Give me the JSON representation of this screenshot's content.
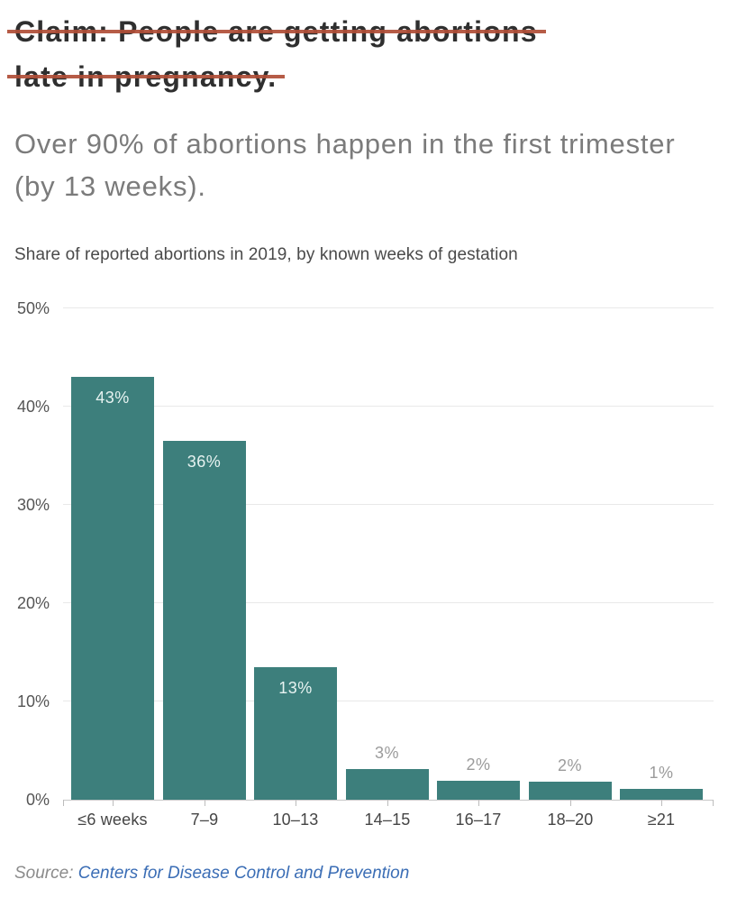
{
  "claim": {
    "line1": "Claim: People are getting abortions",
    "line2": "late in pregnancy."
  },
  "headline": "Over 90% of abortions happen in the first trimester (by 13 weeks).",
  "chart_description": "Share of reported abortions in 2019, by known weeks of gestation",
  "source": {
    "prefix": "Source: ",
    "link_text": "Centers for Disease Control and Prevention"
  },
  "colors": {
    "bar": "#3d7f7c",
    "strikethrough": "#b04e37",
    "claim_text": "#2f2f2f",
    "headline_text": "#7b7b7b",
    "inside_label": "#e7f3f1",
    "above_label": "#9b9b9b",
    "source_link": "#3a6db5",
    "gridline": "#e9e9e9"
  },
  "chart_data": {
    "type": "bar",
    "title": "Share of reported abortions in 2019, by known weeks of gestation",
    "categories": [
      "≤6 weeks",
      "7–9",
      "10–13",
      "14–15",
      "16–17",
      "18–20",
      "≥21"
    ],
    "values": [
      43,
      36,
      13,
      3,
      2,
      2,
      1
    ],
    "value_labels": [
      "43%",
      "36%",
      "13%",
      "3%",
      "2%",
      "2%",
      "1%"
    ],
    "bar_heights_pct": [
      43,
      36.5,
      13.5,
      3.1,
      1.9,
      1.8,
      1.1
    ],
    "label_placement": [
      "inside",
      "inside",
      "inside",
      "above",
      "above",
      "above",
      "above"
    ],
    "xlabel": "",
    "ylabel": "",
    "ylim": [
      0,
      50
    ],
    "yticks": [
      0,
      10,
      20,
      30,
      40,
      50
    ],
    "ytick_labels": [
      "0%",
      "10%",
      "20%",
      "30%",
      "40%",
      "50%"
    ],
    "grid": true,
    "legend": false
  }
}
